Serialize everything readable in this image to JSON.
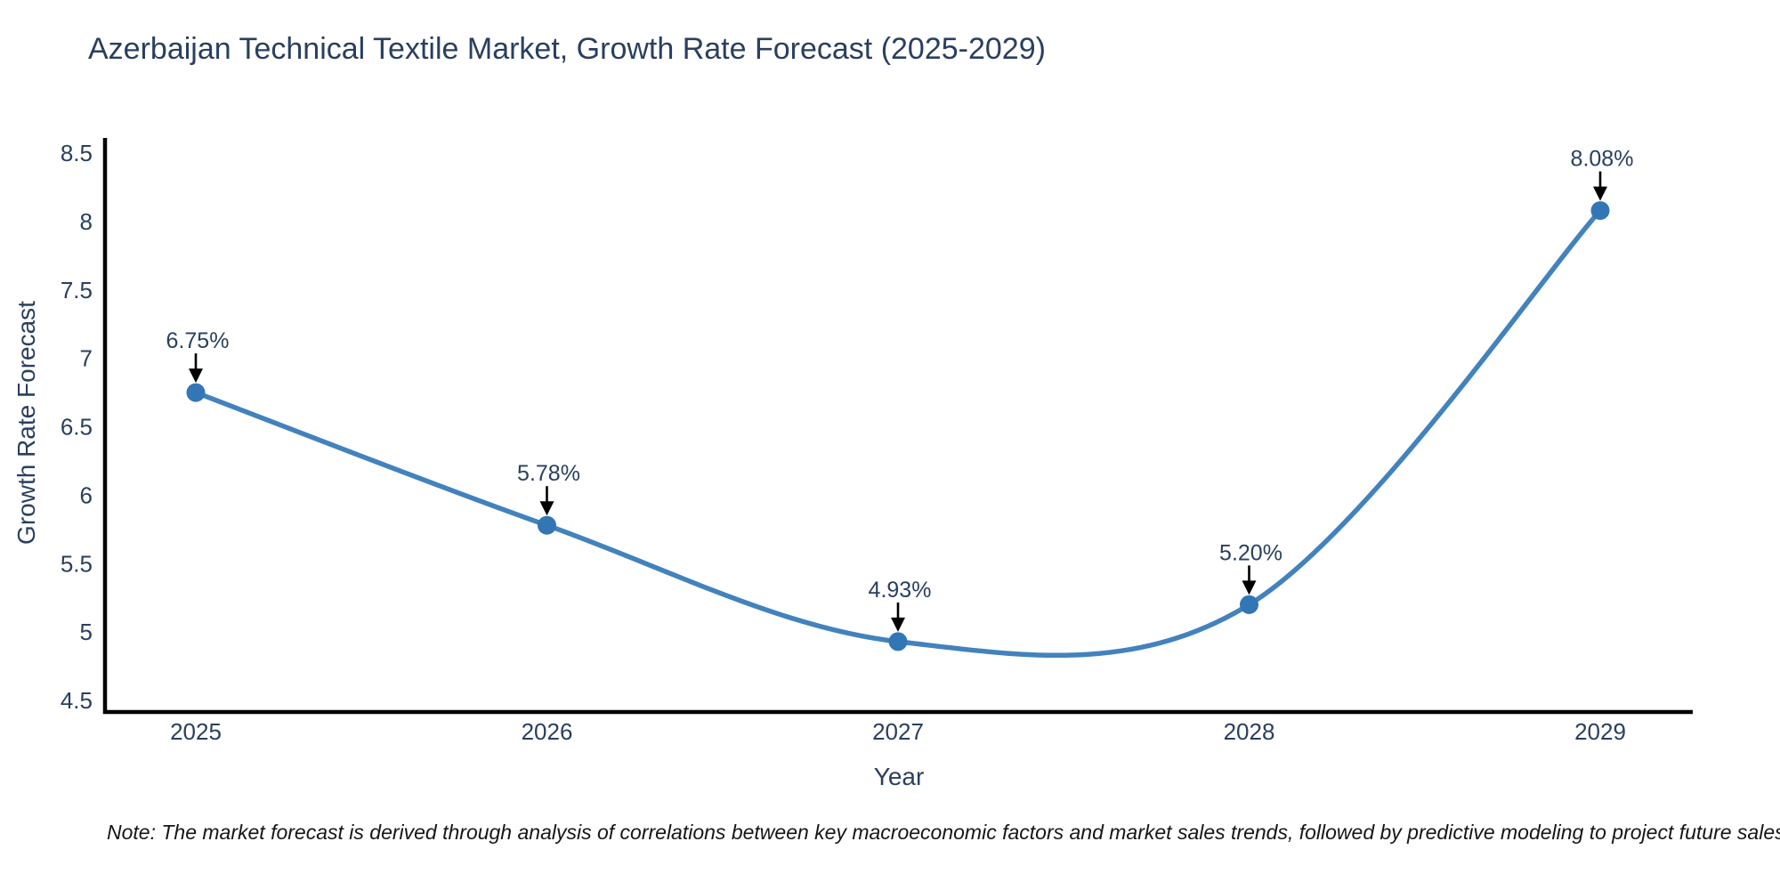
{
  "note": "Note: The market forecast is derived through analysis of correlations between key macroeconomic factors and market sales trends, followed by predictive modeling to project future sales",
  "chart_data": {
    "type": "line",
    "title": "Azerbaijan Technical Textile Market, Growth Rate Forecast (2025-2029)",
    "xlabel": "Year",
    "ylabel": "Growth Rate Forecast",
    "x": [
      2025,
      2026,
      2027,
      2028,
      2029
    ],
    "y": [
      6.75,
      5.78,
      4.93,
      5.2,
      8.08
    ],
    "point_labels": [
      "6.75%",
      "5.78%",
      "4.93%",
      "5.20%",
      "8.08%"
    ],
    "yticks": [
      4.5,
      5,
      5.5,
      6,
      6.5,
      7,
      7.5,
      8,
      8.5
    ],
    "ylim": [
      4.41,
      8.59
    ],
    "line_shape": "spline",
    "grid": false,
    "legend": "none",
    "colors": {
      "line": "#4282bd",
      "marker": "#3376b5",
      "axis": "#000000",
      "text": "#2a3f5f",
      "annotation_arrow": "#000000",
      "note_text": "#161616",
      "background": "#ffffff"
    }
  }
}
